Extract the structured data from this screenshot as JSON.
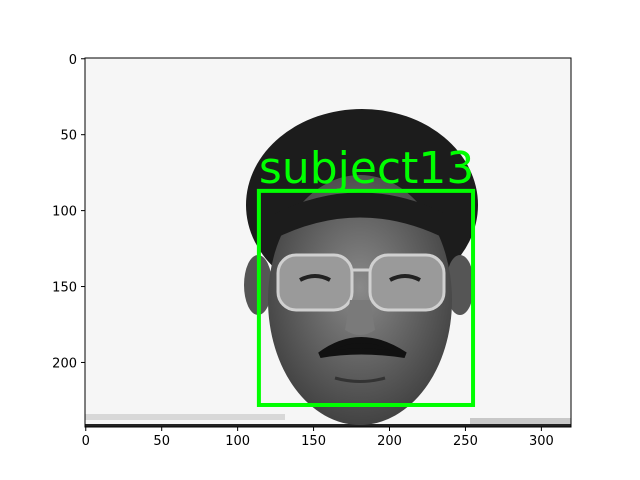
{
  "chart_data": {
    "type": "image",
    "xlim": [
      -0.5,
      319.5
    ],
    "ylim": [
      242.5,
      -0.5
    ],
    "xticks": [
      0,
      50,
      100,
      150,
      200,
      250,
      300
    ],
    "yticks": [
      0,
      50,
      100,
      150,
      200
    ],
    "boxes": [
      {
        "label": "subject13",
        "x0": 114,
        "y0": 87,
        "x1": 255,
        "y1": 228,
        "color": "#00ff00"
      }
    ]
  }
}
